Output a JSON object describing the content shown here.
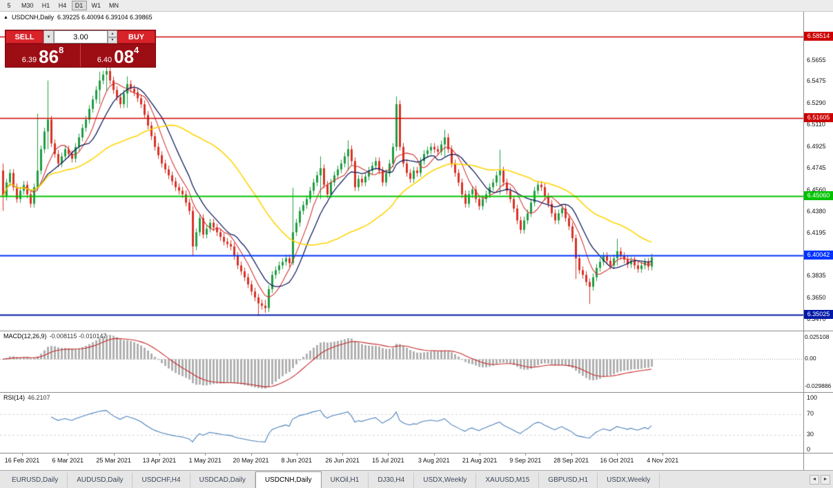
{
  "window": {
    "title": "USDCNH,Daily"
  },
  "toolbar": {
    "timeframes": [
      {
        "label": "5",
        "active": false
      },
      {
        "label": "M30",
        "active": false
      },
      {
        "label": "H1",
        "active": false
      },
      {
        "label": "H4",
        "active": false
      },
      {
        "label": "D1",
        "active": true
      },
      {
        "label": "W1",
        "active": false
      },
      {
        "label": "MN",
        "active": false
      }
    ]
  },
  "chart_header": {
    "direction_icon": "▲",
    "symbol": "USDCNH,Daily",
    "ohlc_text": "6.39225 6.40094 6.39104 6.39865"
  },
  "trade_panel": {
    "sell_label": "SELL",
    "buy_label": "BUY",
    "volume": "3.00",
    "dropdown_icon": "▼",
    "spin_up_icon": "▲",
    "spin_down_icon": "▼",
    "sell_price": {
      "small": "6.39",
      "big": "86",
      "sup": "8"
    },
    "buy_price": {
      "small": "6.40",
      "big": "08",
      "sup": "4"
    }
  },
  "chart_data": {
    "type": "candlestick",
    "symbol": "USDCNH",
    "timeframe": "Daily",
    "open": "6.39225",
    "high": "6.40094",
    "low": "6.39104",
    "close": "6.39865",
    "price_range": [
      6.337,
      6.606
    ],
    "y_ticks": [
      "6.5655",
      "6.5475",
      "6.5290",
      "6.5110",
      "6.4925",
      "6.4745",
      "6.4560",
      "6.4380",
      "6.4195",
      "6.4015",
      "6.3835",
      "6.3650",
      "6.3470"
    ],
    "x_labels": [
      "16 Feb 2021",
      "6 Mar 2021",
      "25 Mar 2021",
      "13 Apr 2021",
      "1 May 2021",
      "20 May 2021",
      "8 Jun 2021",
      "26 Jun 2021",
      "15 Jul 2021",
      "3 Aug 2021",
      "21 Aug 2021",
      "9 Sep 2021",
      "28 Sep 2021",
      "16 Oct 2021",
      "4 Nov 2021"
    ],
    "h_lines": [
      {
        "price": 6.58514,
        "label": "6.58514",
        "color": "#cc0000",
        "width": 1.5
      },
      {
        "price": 6.51605,
        "label": "6.51605",
        "color": "#cc0000",
        "width": 1.5
      },
      {
        "price": 6.4506,
        "label": "6.45060",
        "color": "#00c300",
        "width": 2
      },
      {
        "price": 6.40042,
        "label": "6.40042",
        "color": "#0033ff",
        "width": 2
      },
      {
        "price": 6.35025,
        "label": "6.35025",
        "color": "#0018a8",
        "width": 2
      }
    ],
    "up_color": "#1f9d40",
    "down_color": "#d93025",
    "first_open": 6.472,
    "pitch": 5,
    "x_start": 3,
    "default_wick": 0.0032,
    "closes": [
      6.45,
      6.462,
      6.47,
      6.458,
      6.448,
      6.455,
      6.46,
      6.452,
      6.444,
      6.458,
      6.472,
      6.49,
      6.505,
      6.515,
      6.495,
      6.486,
      6.478,
      6.484,
      6.49,
      6.486,
      6.482,
      6.492,
      6.5,
      6.508,
      6.515,
      6.524,
      6.532,
      6.54,
      6.548,
      6.553,
      6.556,
      6.548,
      6.54,
      6.534,
      6.528,
      6.537,
      6.545,
      6.541,
      6.538,
      6.533,
      6.528,
      6.519,
      6.51,
      6.501,
      6.492,
      6.485,
      6.478,
      6.473,
      6.468,
      6.463,
      6.458,
      6.455,
      6.452,
      6.445,
      6.438,
      6.408,
      6.42,
      6.432,
      6.418,
      6.423,
      6.428,
      6.424,
      6.42,
      6.416,
      6.412,
      6.41,
      6.408,
      6.4,
      6.392,
      6.387,
      6.382,
      6.376,
      6.37,
      6.365,
      6.36,
      6.358,
      6.356,
      6.372,
      6.384,
      6.388,
      6.392,
      6.395,
      6.398,
      6.394,
      6.42,
      6.428,
      6.438,
      6.443,
      6.448,
      6.455,
      6.462,
      6.468,
      6.474,
      6.46,
      6.452,
      6.462,
      6.468,
      6.473,
      6.478,
      6.484,
      6.49,
      6.48,
      6.458,
      6.465,
      6.462,
      6.467,
      6.472,
      6.476,
      6.48,
      6.472,
      6.462,
      6.47,
      6.478,
      6.492,
      6.528,
      6.492,
      6.478,
      6.47,
      6.465,
      6.472,
      6.47,
      6.48,
      6.486,
      6.489,
      6.492,
      6.49,
      6.488,
      6.494,
      6.5,
      6.49,
      6.478,
      6.47,
      6.462,
      6.452,
      6.444,
      6.452,
      6.456,
      6.448,
      6.442,
      6.448,
      6.452,
      6.458,
      6.462,
      6.468,
      6.472,
      6.462,
      6.455,
      6.448,
      6.44,
      6.43,
      6.422,
      6.43,
      6.436,
      6.445,
      6.455,
      6.46,
      6.458,
      6.45,
      6.444,
      6.436,
      6.43,
      6.436,
      6.44,
      6.432,
      6.425,
      6.415,
      6.398,
      6.388,
      6.384,
      6.378,
      6.374,
      6.382,
      6.39,
      6.395,
      6.4,
      6.396,
      6.392,
      6.398,
      6.404,
      6.4,
      6.397,
      6.393,
      6.396,
      6.392,
      6.389,
      6.392,
      6.395,
      6.391,
      6.3987
    ],
    "wick_overrides": {
      "0": [
        6.478,
        6.438
      ],
      "10": [
        6.52,
        6.455
      ],
      "13": [
        6.548,
        6.49
      ],
      "28": [
        6.5555,
        6.528
      ],
      "30": [
        6.5605,
        6.5395
      ],
      "36": [
        6.5515,
        6.525
      ],
      "55": [
        6.442,
        6.4
      ],
      "74": [
        6.368,
        6.3495
      ],
      "76": [
        6.363,
        6.352
      ],
      "84": [
        6.4575,
        6.392
      ],
      "92": [
        6.484,
        6.448
      ],
      "100": [
        6.4975,
        6.472
      ],
      "114": [
        6.5345,
        6.4885
      ],
      "128": [
        6.5065,
        6.4835
      ],
      "144": [
        6.4895,
        6.452
      ],
      "166": [
        6.418,
        6.3805
      ],
      "170": [
        6.381,
        6.3595
      ],
      "178": [
        6.4145,
        6.392
      ]
    },
    "moving_averages": [
      {
        "period": 7,
        "color": "#d32f2f",
        "width": 1.1
      },
      {
        "period": 12,
        "color": "#101a5e",
        "width": 1.3
      },
      {
        "period": 40,
        "color": "#ffd400",
        "width": 1.6
      }
    ],
    "macd": {
      "label": "MACD(12,26,9)",
      "values": "-0.008115 -0.010147",
      "fast": 12,
      "slow": 26,
      "signal": 9,
      "range": [
        -0.029886,
        0.025108
      ],
      "axis_labels": [
        "0.025108",
        "0.00",
        "-0.029886"
      ],
      "hist_color": "#b0b0b0",
      "signal_color": "#c62828"
    },
    "rsi": {
      "label": "RSI(14)",
      "value": "46.2107",
      "period": 14,
      "axis_labels": [
        "100",
        "70",
        "30",
        "0"
      ],
      "levels": [
        70,
        30
      ],
      "color": "#4a7ebb"
    }
  },
  "tabs": {
    "items": [
      {
        "label": "EURUSD,Daily"
      },
      {
        "label": "AUDUSD,Daily"
      },
      {
        "label": "USDCHF,H4"
      },
      {
        "label": "USDCAD,Daily"
      },
      {
        "label": "USDCNH,Daily",
        "active": true
      },
      {
        "label": "UKOil,H1"
      },
      {
        "label": "DJ30,H4"
      },
      {
        "label": "USDX,Weekly"
      },
      {
        "label": "XAUUSD,M15"
      },
      {
        "label": "GBPUSD,H1"
      },
      {
        "label": "USDX,Weekly"
      }
    ],
    "scroll_left_icon": "◄",
    "scroll_right_icon": "►"
  }
}
